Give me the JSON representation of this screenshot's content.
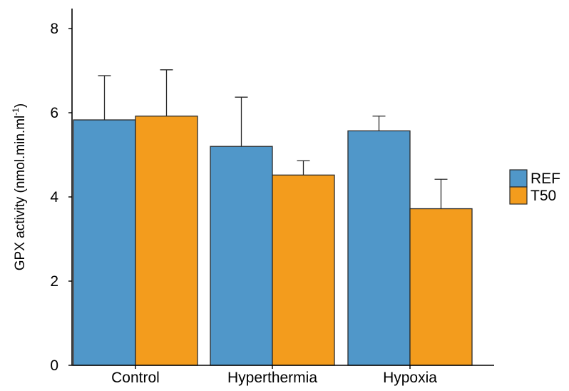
{
  "chart_data": {
    "type": "bar",
    "categories": [
      "Control",
      "Hyperthermia",
      "Hypoxia"
    ],
    "series": [
      {
        "name": "REF",
        "color": "#5097c9",
        "values": [
          5.83,
          5.2,
          5.57
        ],
        "error": [
          1.05,
          1.17,
          0.35
        ]
      },
      {
        "name": "T50",
        "color": "#f39c1d",
        "values": [
          5.92,
          4.52,
          3.72
        ],
        "error": [
          1.1,
          0.34,
          0.7
        ]
      }
    ],
    "ylabel_main": "GPX activity (nmol.min.ml",
    "ylabel_sup": "-1",
    "ylabel_close": ")",
    "ylim": [
      0,
      8.5
    ],
    "yticks": [
      "0",
      "2",
      "4",
      "6",
      "8"
    ],
    "grid": false,
    "legend_position": "right"
  }
}
